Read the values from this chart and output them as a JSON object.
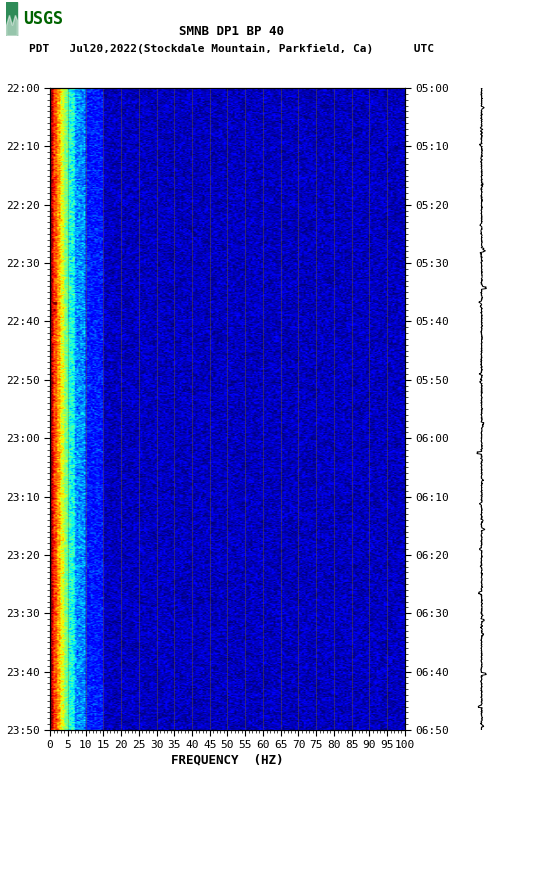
{
  "title_line1": "SMNB DP1 BP 40",
  "title_line2": "PDT   Jul20,2022(Stockdale Mountain, Parkfield, Ca)      UTC",
  "xlabel": "FREQUENCY  (HZ)",
  "left_times": [
    "22:00",
    "22:10",
    "22:20",
    "22:30",
    "22:40",
    "22:50",
    "23:00",
    "23:10",
    "23:20",
    "23:30",
    "23:40",
    "23:50"
  ],
  "right_times": [
    "05:00",
    "05:10",
    "05:20",
    "05:30",
    "05:40",
    "05:50",
    "06:00",
    "06:10",
    "06:20",
    "06:30",
    "06:40",
    "06:50"
  ],
  "freq_labels": [
    "0",
    "5",
    "10",
    "15",
    "20",
    "25",
    "30",
    "35",
    "40",
    "45",
    "50",
    "55",
    "60",
    "65",
    "70",
    "75",
    "80",
    "85",
    "90",
    "95",
    "100"
  ],
  "freq_ticks": [
    0,
    5,
    10,
    15,
    20,
    25,
    30,
    35,
    40,
    45,
    50,
    55,
    60,
    65,
    70,
    75,
    80,
    85,
    90,
    95,
    100
  ],
  "freq_gridlines": [
    5,
    10,
    15,
    20,
    25,
    30,
    35,
    40,
    45,
    50,
    55,
    60,
    65,
    70,
    75,
    80,
    85,
    90,
    95
  ],
  "n_time_steps": 720,
  "n_freq_steps": 200,
  "tick_label_fontsize": 8,
  "title_fontsize": 9,
  "axis_label_fontsize": 9
}
